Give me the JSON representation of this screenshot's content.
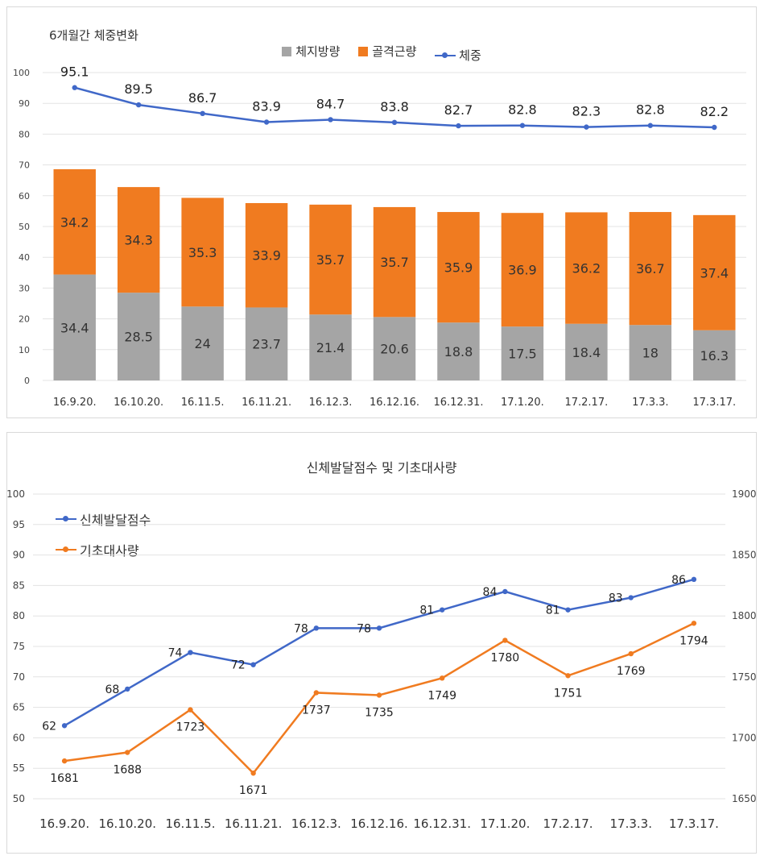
{
  "chart_data": [
    {
      "type": "bar",
      "title": "6개월간 체중변화",
      "categories": [
        "16.9.20.",
        "16.10.20.",
        "16.11.5.",
        "16.11.21.",
        "16.12.3.",
        "16.12.16.",
        "16.12.31.",
        "17.1.20.",
        "17.2.17.",
        "17.3.3.",
        "17.3.17."
      ],
      "ylim": [
        0,
        100
      ],
      "yticks": [
        0,
        10,
        20,
        30,
        40,
        50,
        60,
        70,
        80,
        90,
        100
      ],
      "stacked": true,
      "grid": true,
      "legend": "top",
      "series": [
        {
          "name": "체지방량",
          "type": "bar",
          "color": "#a5a5a5",
          "values": [
            34.4,
            28.5,
            24,
            23.7,
            21.4,
            20.6,
            18.8,
            17.5,
            18.4,
            18,
            16.3
          ]
        },
        {
          "name": "골격근량",
          "type": "bar",
          "color": "#f07b20",
          "values": [
            34.2,
            34.3,
            35.3,
            33.9,
            35.7,
            35.7,
            35.9,
            36.9,
            36.2,
            36.7,
            37.4
          ]
        },
        {
          "name": "체중",
          "type": "line",
          "color": "#4068c8",
          "values": [
            95.1,
            89.5,
            86.7,
            83.9,
            84.7,
            83.8,
            82.7,
            82.8,
            82.3,
            82.8,
            82.2
          ]
        }
      ]
    },
    {
      "type": "line",
      "title": "신체발달점수 및 기초대사량",
      "categories": [
        "16.9.20.",
        "16.10.20.",
        "16.11.5.",
        "16.11.21.",
        "16.12.3.",
        "16.12.16.",
        "16.12.31.",
        "17.1.20.",
        "17.2.17.",
        "17.3.3.",
        "17.3.17."
      ],
      "ylim": [
        50,
        100
      ],
      "yticks": [
        50,
        55,
        60,
        65,
        70,
        75,
        80,
        85,
        90,
        95,
        100
      ],
      "y2lim": [
        1650,
        1900
      ],
      "y2ticks": [
        1650,
        1700,
        1750,
        1800,
        1850,
        1900
      ],
      "grid": true,
      "legend": "top-left",
      "series": [
        {
          "name": "신체발달점수",
          "axis": "left",
          "color": "#4068c8",
          "values": [
            62,
            68,
            74,
            72,
            78,
            78,
            81,
            84,
            81,
            83,
            86
          ]
        },
        {
          "name": "기초대사량",
          "axis": "right",
          "color": "#f07b20",
          "values": [
            1681,
            1688,
            1723,
            1671,
            1737,
            1735,
            1749,
            1780,
            1751,
            1769,
            1794
          ]
        }
      ]
    }
  ]
}
